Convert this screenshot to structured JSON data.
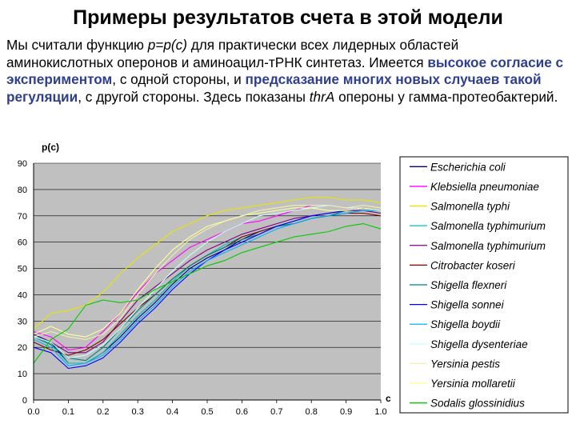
{
  "slide": {
    "title": "Примеры результатов счета в этой модели",
    "text": {
      "p1": "Мы считали функцию ",
      "p_formula": "p=p(c)",
      "p2": " для практически всех лидерных областей аминокислотных оперонов и аминоацил-тРНК синтетаз. Имеется ",
      "h1": "высокое согласие с экспериментом",
      "p3": ", с одной стороны, и ",
      "h2": "предсказание многих новых случаев такой регуляции",
      "p4": ", с другой стороны. Здесь показаны ",
      "p_operon": "thrA",
      "p5": " опероны у гамма-протеобактерий."
    }
  },
  "colors": {
    "plot_bg": "#c0c0c0",
    "highlight_text": "#2e3f8f"
  },
  "chart_data": {
    "type": "line",
    "xlabel": "c",
    "ylabel": "p(c)",
    "xlim": [
      0,
      1
    ],
    "ylim": [
      0,
      90
    ],
    "x_ticks": [
      "0.0",
      "0.1",
      "0.2",
      "0.3",
      "0.4",
      "0.5",
      "0.6",
      "0.7",
      "0.8",
      "0.9",
      "1.0"
    ],
    "y_ticks": [
      "0",
      "10",
      "20",
      "30",
      "40",
      "50",
      "60",
      "70",
      "80",
      "90"
    ],
    "grid": true,
    "legend_position": "right",
    "x": [
      0,
      0.05,
      0.1,
      0.15,
      0.2,
      0.25,
      0.3,
      0.35,
      0.4,
      0.45,
      0.5,
      0.55,
      0.6,
      0.65,
      0.7,
      0.75,
      0.8,
      0.85,
      0.9,
      0.95,
      1.0
    ],
    "series": [
      {
        "name": "Escherichia coli",
        "color": "#000080",
        "values": [
          25,
          22,
          14,
          14,
          18,
          24,
          31,
          37,
          44,
          50,
          54,
          57,
          61,
          64,
          66,
          68,
          70,
          71,
          72,
          73,
          72
        ]
      },
      {
        "name": "Klebsiella pneumoniae",
        "color": "#ff00ff",
        "values": [
          26,
          24,
          19,
          20,
          26,
          33,
          41,
          48,
          53,
          58,
          61,
          64,
          67,
          68,
          70,
          72,
          74,
          74,
          73,
          73,
          72
        ]
      },
      {
        "name": "Salmonella typhi",
        "color": "#e6e600",
        "values": [
          27,
          33,
          34,
          36,
          41,
          48,
          54,
          59,
          64,
          67,
          70,
          72,
          73,
          74,
          75,
          76,
          77,
          77,
          76,
          76,
          75
        ]
      },
      {
        "name": "Salmonella typhimurium",
        "color": "#00c0c0",
        "values": [
          25,
          21,
          14,
          14,
          18,
          25,
          32,
          38,
          45,
          51,
          55,
          59,
          62,
          64,
          66,
          68,
          70,
          71,
          72,
          72,
          71
        ]
      },
      {
        "name": "Salmonella typhimurium",
        "color": "#800080",
        "values": [
          25,
          22,
          18,
          18,
          22,
          30,
          38,
          43,
          48,
          53,
          57,
          60,
          63,
          65,
          67,
          69,
          70,
          71,
          72,
          72,
          71
        ]
      },
      {
        "name": "Citrobacter koseri",
        "color": "#800000",
        "values": [
          22,
          19,
          17,
          19,
          23,
          29,
          35,
          40,
          46,
          51,
          55,
          58,
          62,
          64,
          66,
          67,
          69,
          70,
          71,
          71,
          70
        ]
      },
      {
        "name": "Shigella flexneri",
        "color": "#008080",
        "values": [
          24,
          21,
          16,
          15,
          20,
          27,
          34,
          40,
          46,
          51,
          55,
          58,
          61,
          63,
          66,
          67,
          69,
          70,
          72,
          73,
          72
        ]
      },
      {
        "name": "Shigella sonnei",
        "color": "#0000ff",
        "values": [
          20,
          18,
          12,
          13,
          16,
          22,
          29,
          35,
          42,
          48,
          53,
          57,
          60,
          63,
          66,
          68,
          70,
          71,
          72,
          73,
          72
        ]
      },
      {
        "name": "Shigella boydii",
        "color": "#00b0ff",
        "values": [
          23,
          20,
          13,
          14,
          17,
          23,
          30,
          36,
          43,
          49,
          53,
          56,
          59,
          62,
          65,
          67,
          69,
          70,
          71,
          72,
          72
        ]
      },
      {
        "name": "Shigella dysenteriae",
        "color": "#c8ffff",
        "values": [
          24,
          22,
          16,
          17,
          21,
          27,
          35,
          42,
          49,
          55,
          60,
          64,
          67,
          70,
          71,
          72,
          73,
          74,
          73,
          73,
          72
        ]
      },
      {
        "name": "Yersinia pestis",
        "color": "#f0f0b0",
        "values": [
          24,
          26,
          24,
          23,
          25,
          31,
          40,
          48,
          55,
          61,
          65,
          68,
          70,
          72,
          73,
          74,
          74,
          74,
          73,
          74,
          73
        ]
      },
      {
        "name": "Yersinia mollaretii",
        "color": "#ffff99",
        "values": [
          25,
          28,
          25,
          24,
          27,
          33,
          42,
          50,
          57,
          62,
          66,
          68,
          70,
          71,
          72,
          73,
          73,
          72,
          72,
          73,
          72
        ]
      },
      {
        "name": "Sodalis glossinidius",
        "color": "#00cc00",
        "values": [
          14,
          23,
          27,
          36,
          38,
          37,
          38,
          42,
          45,
          48,
          51,
          53,
          56,
          58,
          60,
          62,
          63,
          64,
          66,
          67,
          65
        ]
      }
    ]
  }
}
